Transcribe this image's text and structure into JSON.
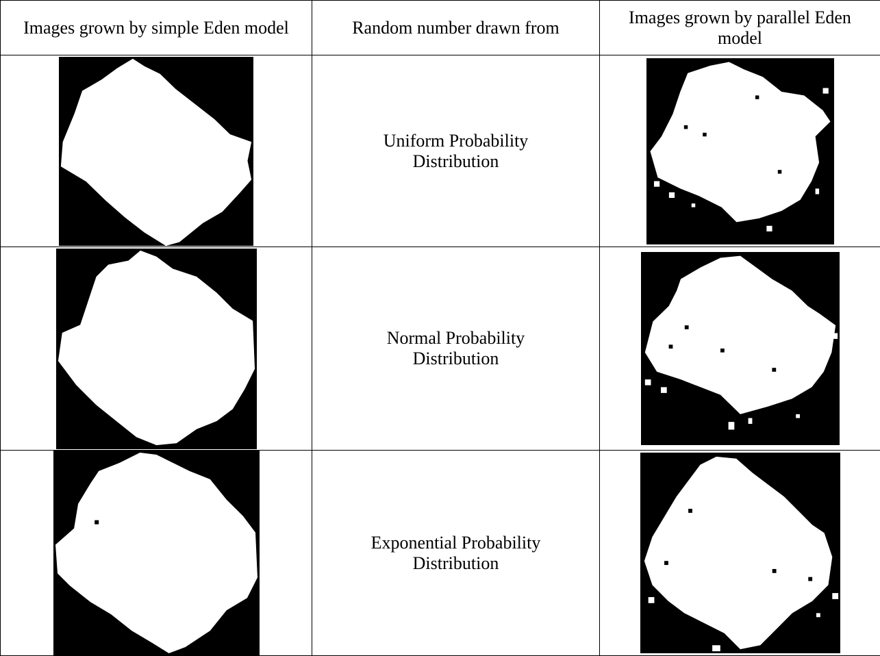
{
  "table": {
    "header": [
      "Images grown by simple Eden model",
      "Random number drawn from",
      "Images grown by parallel Eden model"
    ],
    "rows": [
      [
        "Uniform Probability Distribution"
      ],
      [
        "Normal Probability Distribution"
      ],
      [
        "Exponential Probability Distribution"
      ]
    ]
  }
}
